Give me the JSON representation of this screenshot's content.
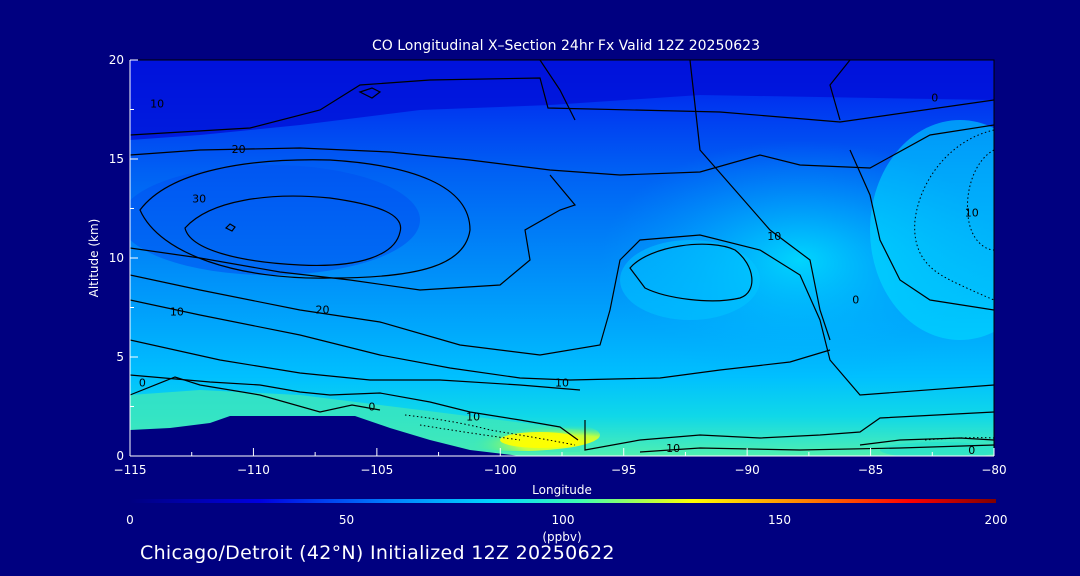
{
  "chart_data": {
    "type": "heatmap",
    "title": "CO Longitudinal X–Section 24hr  Fx Valid 12Z 20250623",
    "xlabel": "Longitude",
    "ylabel": "Altitude (km)",
    "xlim": [
      -115,
      -80
    ],
    "ylim": [
      0,
      20
    ],
    "x_ticks": [
      -115,
      -110,
      -105,
      -100,
      -95,
      -90,
      -85,
      -80
    ],
    "x_tick_labels": [
      "−115",
      "−110",
      "−105",
      "−100",
      "−95",
      "−90",
      "−85",
      "−80"
    ],
    "y_ticks": [
      0,
      5,
      10,
      15,
      20
    ],
    "y_tick_labels": [
      "0",
      "5",
      "10",
      "15",
      "20"
    ],
    "contour_labels": [
      {
        "text": "10",
        "lon": -113.9,
        "alt": 17.6
      },
      {
        "text": "20",
        "lon": -110.6,
        "alt": 15.3
      },
      {
        "text": "30",
        "lon": -112.2,
        "alt": 12.8
      },
      {
        "text": "10",
        "lon": -113.1,
        "alt": 7.1
      },
      {
        "text": "20",
        "lon": -107.2,
        "alt": 7.2
      },
      {
        "text": "0",
        "lon": -114.5,
        "alt": 3.5
      },
      {
        "text": "0",
        "lon": -105.2,
        "alt": 2.3
      },
      {
        "text": "10",
        "lon": -101.1,
        "alt": 1.8
      },
      {
        "text": "10",
        "lon": -97.5,
        "alt": 3.5
      },
      {
        "text": "10",
        "lon": -93.0,
        "alt": 0.2
      },
      {
        "text": "10",
        "lon": -88.9,
        "alt": 10.9
      },
      {
        "text": "0",
        "lon": -85.6,
        "alt": 7.7
      },
      {
        "text": "0",
        "lon": -82.4,
        "alt": 17.9
      },
      {
        "text": "10",
        "lon": -80.9,
        "alt": 12.1
      },
      {
        "text": "0",
        "lon": -80.9,
        "alt": 0.1
      }
    ],
    "colorbar": {
      "ticks": [
        0,
        50,
        100,
        150,
        200
      ],
      "tick_labels": [
        "0",
        "50",
        "100",
        "150",
        "200"
      ],
      "label": "100",
      "units": "(ppbv)",
      "colors": [
        "#000080",
        "#0000e0",
        "#0080ff",
        "#00d8ff",
        "#40ffb0",
        "#ffff00",
        "#ff8000",
        "#ff0000",
        "#800000"
      ]
    },
    "caption": "Chicago/Detroit (42°N) Initialized 12Z 20250622",
    "grid": false,
    "legend": "colorbar-bottom"
  }
}
